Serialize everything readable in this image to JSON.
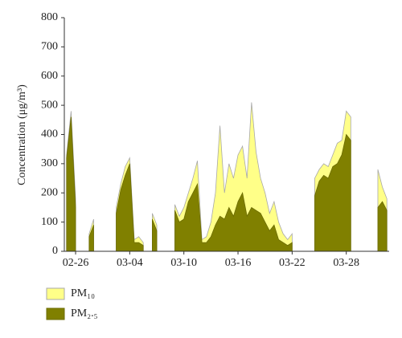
{
  "chart_data": {
    "type": "area",
    "y_label": "Concentration (μg/m³)",
    "categories": [
      null,
      null,
      "02-26",
      null,
      null,
      null,
      null,
      null,
      null,
      null,
      null,
      null,
      null,
      null,
      "03-04",
      null,
      null,
      null,
      null,
      null,
      null,
      null,
      null,
      null,
      null,
      null,
      "03-10",
      null,
      null,
      null,
      null,
      null,
      null,
      null,
      null,
      null,
      null,
      null,
      "03-16",
      null,
      null,
      null,
      null,
      null,
      null,
      null,
      null,
      null,
      null,
      null,
      "03-22",
      null,
      null,
      null,
      null,
      null,
      null,
      null,
      null,
      null,
      null,
      null,
      "03-28",
      null,
      null,
      null,
      null,
      null,
      null,
      null,
      null,
      null
    ],
    "series": [
      {
        "name": "PM₁₀",
        "color": "#ffff88",
        "edge": "#a8a8a8",
        "values": [
          330,
          480,
          180,
          null,
          null,
          60,
          110,
          null,
          null,
          null,
          null,
          150,
          230,
          290,
          320,
          40,
          50,
          30,
          null,
          130,
          90,
          null,
          null,
          null,
          160,
          120,
          150,
          200,
          250,
          310,
          40,
          50,
          100,
          200,
          430,
          200,
          300,
          250,
          330,
          360,
          250,
          510,
          340,
          250,
          200,
          130,
          170,
          100,
          60,
          40,
          60,
          null,
          null,
          null,
          null,
          250,
          280,
          300,
          290,
          330,
          370,
          380,
          480,
          460,
          null,
          null,
          null,
          null,
          null,
          280,
          220,
          180
        ]
      },
      {
        "name": "PM₂.₅",
        "color": "#808000",
        "edge": "#6b6b00",
        "values": [
          320,
          460,
          150,
          null,
          null,
          50,
          90,
          null,
          null,
          null,
          null,
          130,
          210,
          260,
          300,
          30,
          30,
          20,
          null,
          110,
          70,
          null,
          null,
          null,
          140,
          100,
          110,
          170,
          200,
          230,
          30,
          30,
          50,
          90,
          120,
          110,
          150,
          120,
          170,
          200,
          120,
          150,
          140,
          130,
          100,
          70,
          90,
          40,
          30,
          20,
          30,
          null,
          null,
          null,
          null,
          190,
          240,
          260,
          250,
          290,
          300,
          330,
          400,
          380,
          null,
          null,
          null,
          null,
          null,
          150,
          170,
          140
        ]
      }
    ],
    "ylim": [
      0,
      800
    ],
    "yticks": [
      0,
      100,
      200,
      300,
      400,
      500,
      600,
      700,
      800
    ]
  }
}
